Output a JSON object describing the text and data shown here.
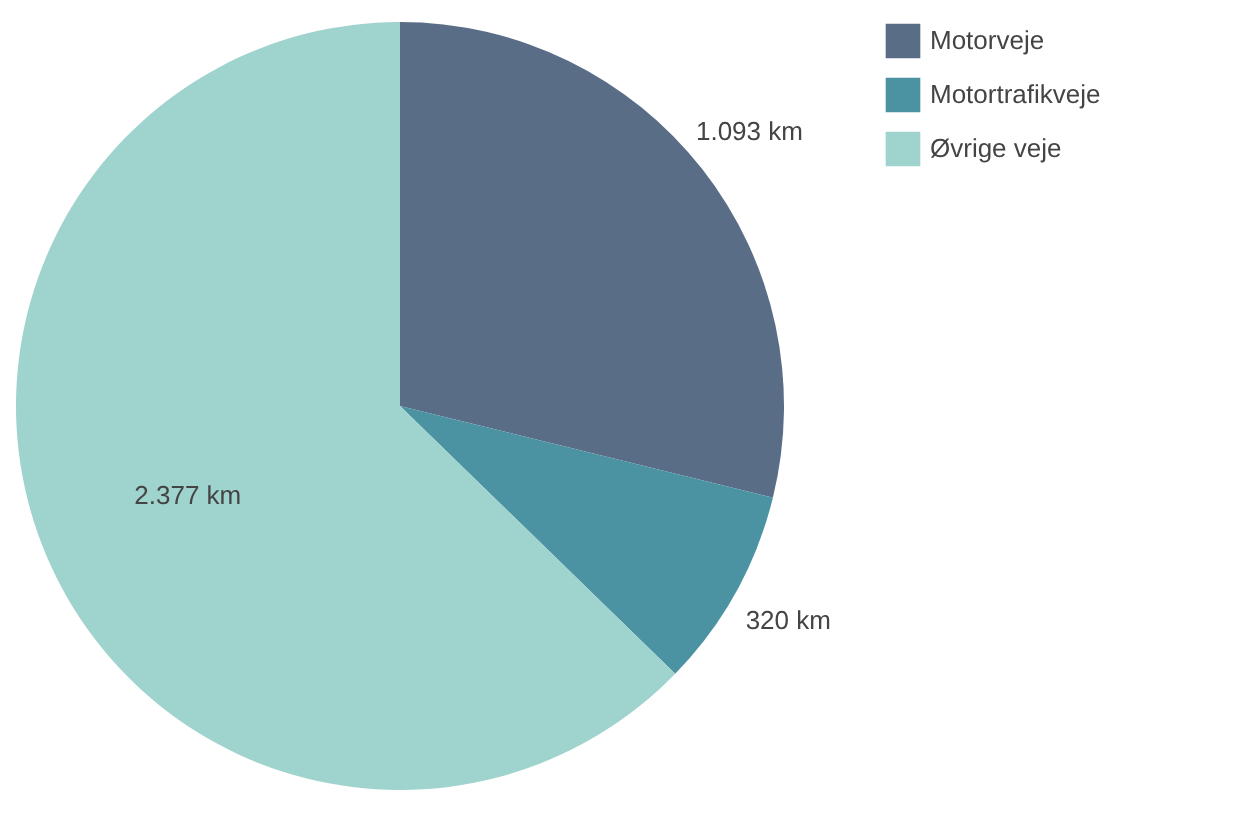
{
  "chart_data": {
    "type": "pie",
    "categories": [
      "Motorveje",
      "Motortrafikveje",
      "Øvrige veje"
    ],
    "values": [
      1093,
      320,
      2377
    ],
    "value_labels": [
      "1.093 km",
      "320 km",
      "2.377 km"
    ],
    "colors": [
      "#5a6d87",
      "#4b93a3",
      "#9fd3ce"
    ],
    "legend": "right"
  }
}
